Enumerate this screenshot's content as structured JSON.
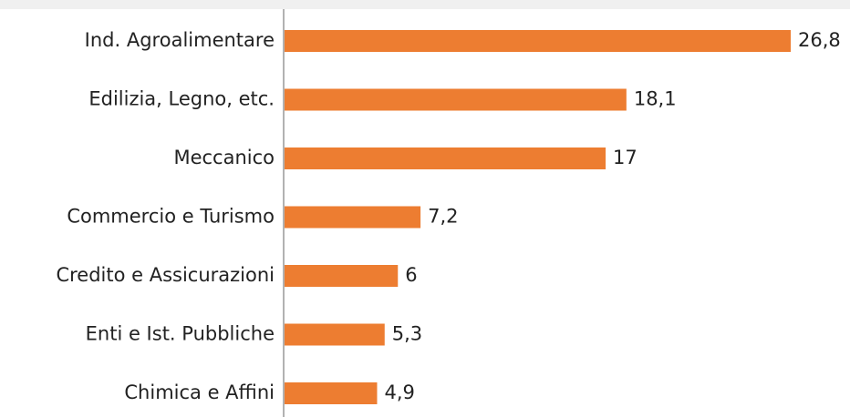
{
  "chart_data": {
    "type": "bar",
    "orientation": "horizontal",
    "categories": [
      "Ind. Agroalimentare",
      "Edilizia, Legno, etc.",
      "Meccanico",
      "Commercio e Turismo",
      "Credito e Assicurazioni",
      "Enti e Ist. Pubbliche",
      "Chimica e Affini"
    ],
    "values": [
      26.8,
      18.1,
      17,
      7.2,
      6,
      5.3,
      4.9
    ],
    "value_labels": [
      "26,8",
      "18,1",
      "17",
      "7,2",
      "6",
      "5,3",
      "4,9"
    ],
    "color": "#ed7d31"
  }
}
